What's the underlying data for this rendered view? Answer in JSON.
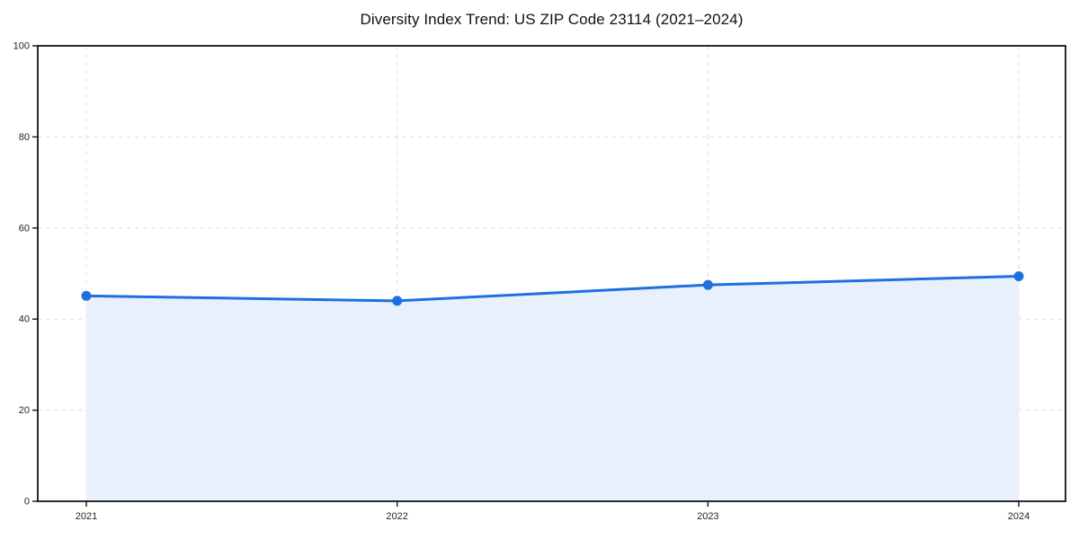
{
  "page": {
    "background": "#ffffff"
  },
  "chart_data": {
    "type": "area",
    "title": "Diversity Index Trend: US ZIP Code 23114 (2021–2024)",
    "x": [
      2021,
      2022,
      2023,
      2024
    ],
    "xticks": [
      "2021",
      "2022",
      "2023",
      "2024"
    ],
    "values": [
      45.1,
      44.0,
      47.5,
      49.4
    ],
    "yticks": [
      0,
      20,
      40,
      60,
      80,
      100
    ],
    "ylim": [
      0,
      100
    ],
    "xlabel": "",
    "ylabel": "",
    "grid": true,
    "grid_style": "dashed",
    "legend": false,
    "marker": "circle",
    "colors": {
      "line": "#1f6fe0",
      "marker": "#1f6fe0",
      "fill": "#e8f0fc",
      "grid": "#e3e3e3",
      "spine": "#141414",
      "tick": "#141414",
      "tick_label": "#262626",
      "title": "#111111",
      "background": "#ffffff"
    }
  }
}
